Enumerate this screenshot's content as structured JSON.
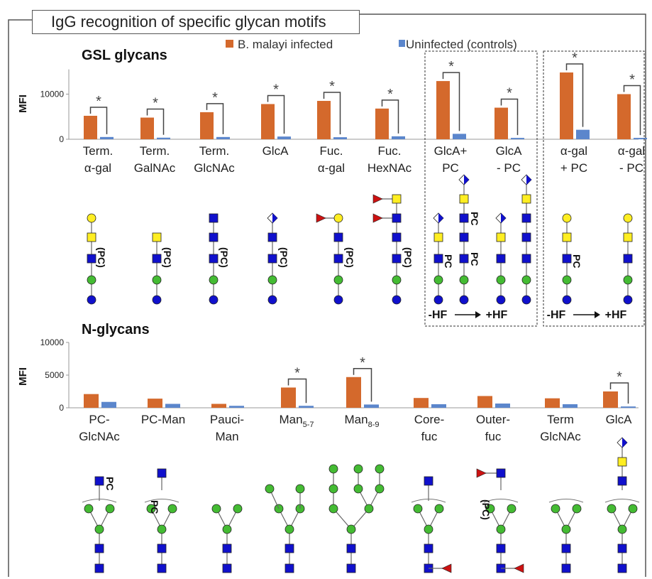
{
  "figure_title": "IgG recognition of specific glycan motifs",
  "colors": {
    "infected": "#d4692c",
    "uninfected": "#5b86cc",
    "frame": "#555555",
    "hexnac": "#1010cc",
    "gal": "#ffee22",
    "man": "#44bb33",
    "fuc": "#cc1111"
  },
  "chart_data": [
    {
      "type": "bar",
      "title": "GSL glycans",
      "ylabel": "MFI",
      "yticks": [
        0,
        10000
      ],
      "ylim": [
        0,
        15500
      ],
      "legend": "top",
      "categories": [
        [
          "Term.",
          "α-gal"
        ],
        [
          "Term.",
          "GalNAc"
        ],
        [
          "Term.",
          "GlcNAc"
        ],
        [
          "GlcA"
        ],
        [
          "Fuc.",
          "α-gal"
        ],
        [
          "Fuc.",
          "HexNAc"
        ],
        [
          "GlcA+",
          "PC"
        ],
        [
          "GlcA",
          "- PC"
        ],
        [
          "α-gal",
          "+ PC"
        ],
        [
          "α-gal",
          "- PC"
        ]
      ],
      "series": [
        {
          "name": "B. malayi infected",
          "values": [
            5200,
            4800,
            6000,
            7800,
            8500,
            6800,
            12900,
            7000,
            14800,
            10000
          ]
        },
        {
          "name": "Uninfected (controls)",
          "values": [
            500,
            350,
            500,
            600,
            450,
            650,
            1200,
            300,
            2100,
            300
          ]
        }
      ],
      "significance": [
        true,
        true,
        true,
        true,
        true,
        true,
        true,
        true,
        true,
        true
      ],
      "star_label": "*",
      "boxed_groups": [
        {
          "labels": [
            "-HF",
            "+HF"
          ]
        },
        {
          "labels": [
            "-HF",
            "+HF"
          ]
        }
      ]
    },
    {
      "type": "bar",
      "title": "N-glycans",
      "ylabel": "MFI",
      "yticks": [
        0,
        5000,
        10000
      ],
      "ylim": [
        0,
        10000
      ],
      "categories": [
        [
          "PC-",
          "GlcNAc"
        ],
        [
          "PC-Man"
        ],
        [
          "Pauci-",
          "Man"
        ],
        [
          "Man5-7"
        ],
        [
          "Man8-9"
        ],
        [
          "Core-",
          "fuc"
        ],
        [
          "Outer-",
          "fuc"
        ],
        [
          "Term",
          "GlcNAc"
        ],
        [
          "GlcA"
        ]
      ],
      "series": [
        {
          "name": "B. malayi infected",
          "values": [
            2100,
            1400,
            600,
            3100,
            4700,
            1500,
            1800,
            1450,
            2500
          ]
        },
        {
          "name": "Uninfected (controls)",
          "values": [
            900,
            600,
            300,
            300,
            500,
            550,
            650,
            550,
            200
          ]
        }
      ],
      "significance": [
        false,
        false,
        false,
        true,
        true,
        false,
        false,
        false,
        true
      ],
      "star_label": "*"
    }
  ],
  "glycan_labels": {
    "pc": "PC",
    "pc_paren": "(PC)"
  }
}
